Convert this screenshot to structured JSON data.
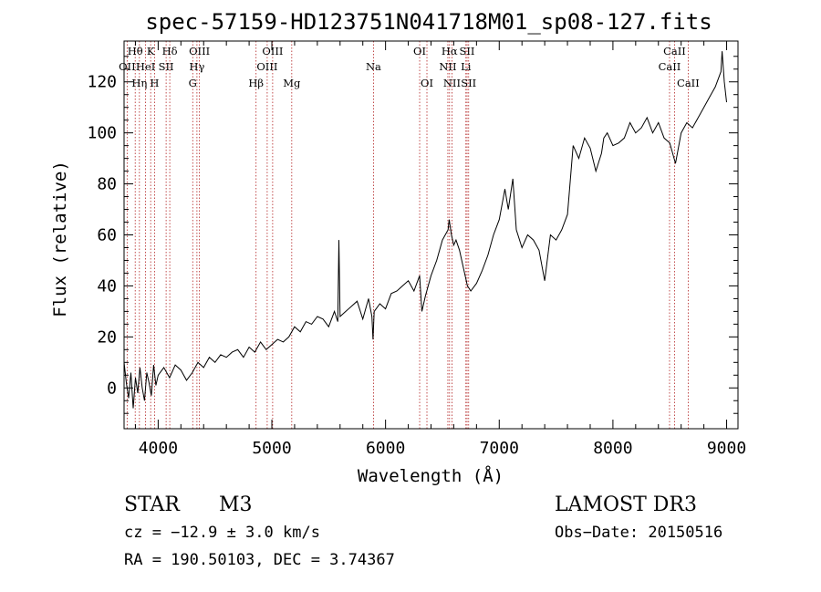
{
  "chart_data": {
    "type": "line",
    "title": "spec-57159-HD123751N041718M01_sp08-127.fits",
    "xlabel": "Wavelength (Å)",
    "ylabel": "Flux (relative)",
    "xlim": [
      3700,
      9100
    ],
    "ylim": [
      -16,
      136
    ],
    "grid": false,
    "xticks": [
      4000,
      5000,
      6000,
      7000,
      8000,
      9000
    ],
    "xtick_labels": [
      "4000",
      "5000",
      "6000",
      "7000",
      "8000",
      "9000"
    ],
    "yticks": [
      0,
      20,
      40,
      60,
      80,
      100,
      120
    ],
    "ytick_labels": [
      "0",
      "20",
      "40",
      "60",
      "80",
      "100",
      "120"
    ],
    "series": [
      {
        "name": "flux",
        "x": [
          3700,
          3720,
          3740,
          3760,
          3780,
          3800,
          3820,
          3840,
          3860,
          3880,
          3900,
          3920,
          3940,
          3960,
          3980,
          4000,
          4050,
          4100,
          4150,
          4200,
          4250,
          4300,
          4350,
          4400,
          4450,
          4500,
          4550,
          4600,
          4650,
          4700,
          4750,
          4800,
          4850,
          4900,
          4950,
          5000,
          5050,
          5100,
          5150,
          5200,
          5250,
          5300,
          5350,
          5400,
          5450,
          5500,
          5550,
          5580,
          5590,
          5600,
          5650,
          5700,
          5750,
          5800,
          5850,
          5880,
          5890,
          5900,
          5950,
          6000,
          6050,
          6100,
          6150,
          6200,
          6250,
          6300,
          6320,
          6350,
          6400,
          6450,
          6500,
          6550,
          6560,
          6580,
          6600,
          6620,
          6650,
          6700,
          6720,
          6750,
          6800,
          6850,
          6900,
          6950,
          7000,
          7050,
          7080,
          7100,
          7120,
          7150,
          7200,
          7250,
          7300,
          7350,
          7400,
          7450,
          7500,
          7550,
          7600,
          7650,
          7700,
          7750,
          7800,
          7850,
          7900,
          7920,
          7950,
          8000,
          8050,
          8100,
          8150,
          8200,
          8250,
          8300,
          8350,
          8400,
          8450,
          8500,
          8550,
          8600,
          8650,
          8700,
          8750,
          8800,
          8850,
          8900,
          8950,
          8960,
          8980,
          9000
        ],
        "y": [
          10,
          2,
          -4,
          6,
          -8,
          4,
          -2,
          8,
          0,
          -5,
          6,
          2,
          -3,
          9,
          1,
          5,
          8,
          4,
          9,
          7,
          3,
          6,
          10,
          8,
          12,
          10,
          13,
          12,
          14,
          15,
          12,
          16,
          14,
          18,
          15,
          17,
          19,
          18,
          20,
          24,
          22,
          26,
          25,
          28,
          27,
          24,
          30,
          26,
          58,
          28,
          30,
          32,
          34,
          27,
          35,
          28,
          19,
          30,
          33,
          31,
          37,
          38,
          40,
          42,
          38,
          44,
          30,
          36,
          44,
          50,
          58,
          62,
          66,
          60,
          56,
          58,
          54,
          44,
          40,
          38,
          41,
          46,
          52,
          60,
          66,
          78,
          70,
          76,
          82,
          62,
          55,
          60,
          58,
          54,
          42,
          60,
          58,
          62,
          68,
          95,
          90,
          98,
          94,
          85,
          92,
          98,
          100,
          95,
          96,
          98,
          104,
          100,
          102,
          106,
          100,
          104,
          98,
          96,
          88,
          100,
          104,
          102,
          106,
          110,
          114,
          118,
          124,
          132,
          120,
          112
        ]
      }
    ],
    "spectral_lines": [
      {
        "wl": 3727,
        "label": "OII",
        "tier": 1
      },
      {
        "wl": 3798,
        "label": "Hθ",
        "tier": 0
      },
      {
        "wl": 3835,
        "label": "Hη",
        "tier": 2
      },
      {
        "wl": 3889,
        "label": "HeI",
        "tier": 1
      },
      {
        "wl": 3934,
        "label": "K",
        "tier": 0
      },
      {
        "wl": 3968,
        "label": "H",
        "tier": 2
      },
      {
        "wl": 4070,
        "label": "SII",
        "tier": 1
      },
      {
        "wl": 4102,
        "label": "Hδ",
        "tier": 0
      },
      {
        "wl": 4304,
        "label": "G",
        "tier": 2
      },
      {
        "wl": 4341,
        "label": "Hγ",
        "tier": 1
      },
      {
        "wl": 4363,
        "label": "OIII",
        "tier": 0
      },
      {
        "wl": 4861,
        "label": "Hβ",
        "tier": 2
      },
      {
        "wl": 4959,
        "label": "OIII",
        "tier": 1
      },
      {
        "wl": 5007,
        "label": "OIII",
        "tier": 0
      },
      {
        "wl": 5175,
        "label": "Mg",
        "tier": 2
      },
      {
        "wl": 5894,
        "label": "Na",
        "tier": 1
      },
      {
        "wl": 6300,
        "label": "OI",
        "tier": 0
      },
      {
        "wl": 6364,
        "label": "OI",
        "tier": 2
      },
      {
        "wl": 6548,
        "label": "NII",
        "tier": 1
      },
      {
        "wl": 6563,
        "label": "Hα",
        "tier": 0
      },
      {
        "wl": 6584,
        "label": "NII",
        "tier": 2
      },
      {
        "wl": 6707,
        "label": "Li",
        "tier": 1
      },
      {
        "wl": 6717,
        "label": "SII",
        "tier": 0
      },
      {
        "wl": 6731,
        "label": "SII",
        "tier": 2
      },
      {
        "wl": 8498,
        "label": "CaII",
        "tier": 1
      },
      {
        "wl": 8542,
        "label": "CaII",
        "tier": 0
      },
      {
        "wl": 8662,
        "label": "CaII",
        "tier": 2
      }
    ]
  },
  "info": {
    "class": "STAR",
    "subclass": "M3",
    "survey": "LAMOST DR3",
    "cz": "cz = −12.9 ± 3.0 km/s",
    "obs_date": "Obs−Date: 20150516",
    "coords": "RA = 190.50103, DEC =   3.74367"
  },
  "colors": {
    "line_marker": "#b22222",
    "spectrum": "#000000",
    "axes": "#000000"
  }
}
